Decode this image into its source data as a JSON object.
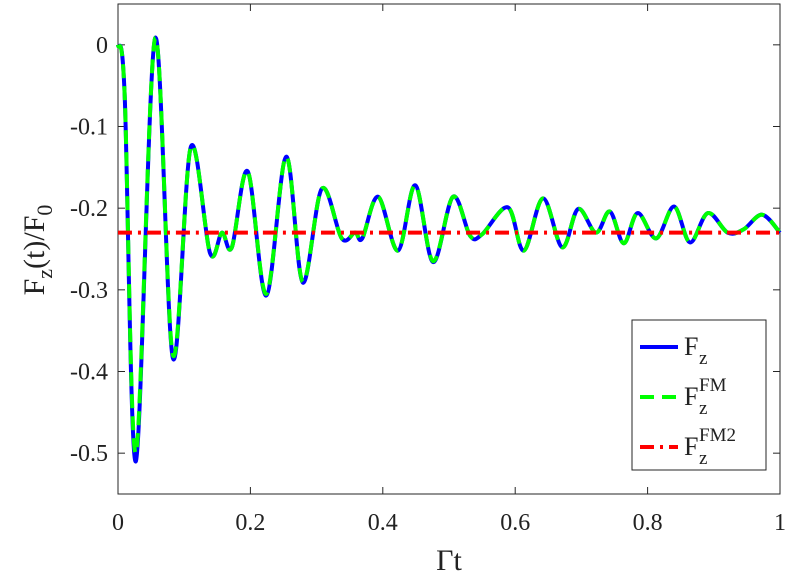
{
  "chart_data": {
    "type": "line",
    "xlabel": "Γt",
    "ylabel": [
      "F",
      "z",
      "(t)/F",
      "0"
    ],
    "xlim": [
      0,
      1
    ],
    "xticks": [
      0,
      0.2,
      0.4,
      0.6,
      0.8,
      1
    ],
    "ylim": [
      -0.55,
      0.05
    ],
    "yticks": [
      0,
      -0.1,
      -0.2,
      -0.3,
      -0.4,
      -0.5
    ],
    "legend": "lower right",
    "series": [
      {
        "name": "F",
        "name_sub": "z",
        "color": "#0000ff",
        "dash": "solid",
        "x": [
          0,
          0.01,
          0.027,
          0.056,
          0.083,
          0.11,
          0.139,
          0.157,
          0.172,
          0.196,
          0.224,
          0.254,
          0.279,
          0.308,
          0.338,
          0.358,
          0.369,
          0.393,
          0.423,
          0.449,
          0.476,
          0.506,
          0.532,
          0.55,
          0.589,
          0.613,
          0.642,
          0.671,
          0.695,
          0.722,
          0.743,
          0.764,
          0.785,
          0.813,
          0.84,
          0.864,
          0.891,
          0.921,
          0.945,
          0.973,
          1
        ],
        "values": [
          0,
          -0.06,
          -0.51,
          0.008,
          -0.384,
          -0.125,
          -0.255,
          -0.23,
          -0.248,
          -0.155,
          -0.307,
          -0.137,
          -0.291,
          -0.176,
          -0.237,
          -0.23,
          -0.237,
          -0.186,
          -0.252,
          -0.172,
          -0.266,
          -0.186,
          -0.234,
          -0.232,
          -0.199,
          -0.252,
          -0.188,
          -0.248,
          -0.201,
          -0.23,
          -0.204,
          -0.243,
          -0.206,
          -0.237,
          -0.198,
          -0.242,
          -0.206,
          -0.23,
          -0.226,
          -0.208,
          -0.23
        ]
      },
      {
        "name": "F",
        "name_sub": "z",
        "name_sup": "FM",
        "color": "#00ff00",
        "dash": "dashed",
        "x": [
          0,
          0.01,
          0.027,
          0.056,
          0.083,
          0.11,
          0.139,
          0.157,
          0.172,
          0.196,
          0.224,
          0.254,
          0.279,
          0.308,
          0.338,
          0.358,
          0.369,
          0.393,
          0.423,
          0.449,
          0.476,
          0.506,
          0.532,
          0.55,
          0.589,
          0.613,
          0.642,
          0.671,
          0.695,
          0.722,
          0.743,
          0.764,
          0.785,
          0.813,
          0.84,
          0.864,
          0.891,
          0.921,
          0.945,
          0.973,
          1
        ],
        "values": [
          0,
          -0.06,
          -0.5,
          0.008,
          -0.38,
          -0.125,
          -0.255,
          -0.23,
          -0.248,
          -0.155,
          -0.305,
          -0.137,
          -0.29,
          -0.176,
          -0.237,
          -0.23,
          -0.237,
          -0.186,
          -0.252,
          -0.172,
          -0.265,
          -0.186,
          -0.234,
          -0.232,
          -0.199,
          -0.252,
          -0.188,
          -0.248,
          -0.201,
          -0.23,
          -0.204,
          -0.243,
          -0.206,
          -0.237,
          -0.198,
          -0.242,
          -0.206,
          -0.23,
          -0.226,
          -0.208,
          -0.23
        ]
      },
      {
        "name": "F",
        "name_sub": "z",
        "name_sup": "FM2",
        "color": "#ff0000",
        "dash": "dashdot",
        "x": [
          0,
          1
        ],
        "values": [
          -0.23,
          -0.23
        ]
      }
    ]
  }
}
